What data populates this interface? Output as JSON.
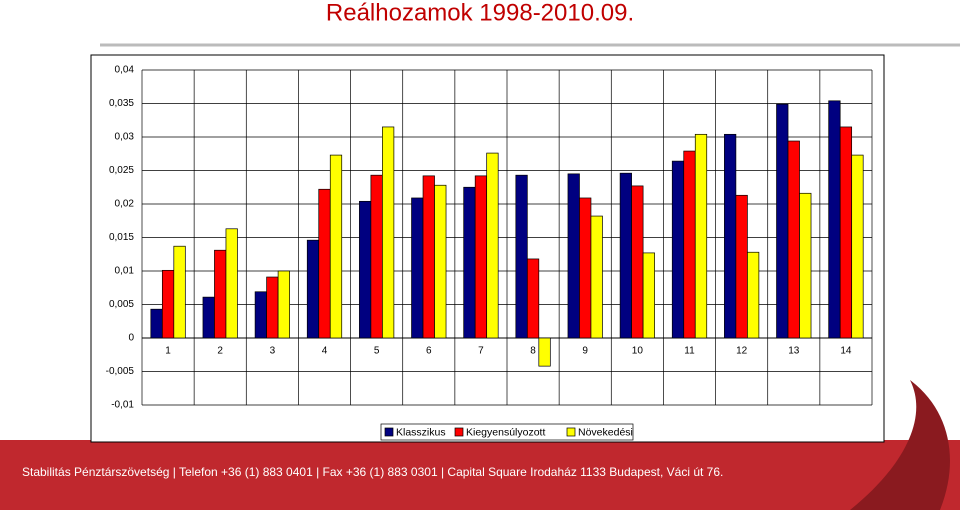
{
  "chart_data": {
    "type": "bar",
    "title": "Reálhozamok 1998-2010.09.",
    "categories": [
      "1",
      "2",
      "3",
      "4",
      "5",
      "6",
      "7",
      "8",
      "9",
      "10",
      "11",
      "12",
      "13",
      "14"
    ],
    "series": [
      {
        "name": "Klasszikus",
        "color": "#000080",
        "values": [
          0.0043,
          0.0061,
          0.0069,
          0.0146,
          0.0204,
          0.0209,
          0.0225,
          0.0243,
          0.0245,
          0.0246,
          0.0264,
          0.0304,
          0.0349,
          0.0354
        ]
      },
      {
        "name": "Kiegyensúlyozott",
        "color": "#ff0000",
        "values": [
          0.0101,
          0.0131,
          0.0091,
          0.0222,
          0.0243,
          0.0242,
          0.0242,
          0.0118,
          0.0209,
          0.0227,
          0.0279,
          0.0213,
          0.0294,
          0.0315
        ]
      },
      {
        "name": "Növekedési",
        "color": "#ffff00",
        "values": [
          0.0137,
          0.0163,
          0.01,
          0.0273,
          0.0315,
          0.0228,
          0.0276,
          -0.0042,
          0.0182,
          0.0127,
          0.0304,
          0.0128,
          0.0216,
          0.0273
        ]
      }
    ],
    "ylim": [
      -0.01,
      0.04
    ],
    "yticks": [
      {
        "value": -0.01,
        "label": "-0,01"
      },
      {
        "value": -0.005,
        "label": "-0,005"
      },
      0,
      {
        "value": 0.005,
        "label": "0,005"
      },
      {
        "value": 0.01,
        "label": "0,01"
      },
      {
        "value": 0.015,
        "label": "0,015"
      },
      {
        "value": 0.02,
        "label": "0,02"
      },
      {
        "value": 0.025,
        "label": "0,025"
      },
      {
        "value": 0.03,
        "label": "0,03"
      },
      {
        "value": 0.035,
        "label": "0,035"
      },
      {
        "value": 0.04,
        "label": "0,04"
      }
    ],
    "grid": true
  },
  "footer": "Stabilitás Pénztárszövetség | Telefon +36 (1) 883 0401 | Fax +36 (1) 883 0301 | Capital Square Irodaház 1133 Budapest, Váci út 76."
}
